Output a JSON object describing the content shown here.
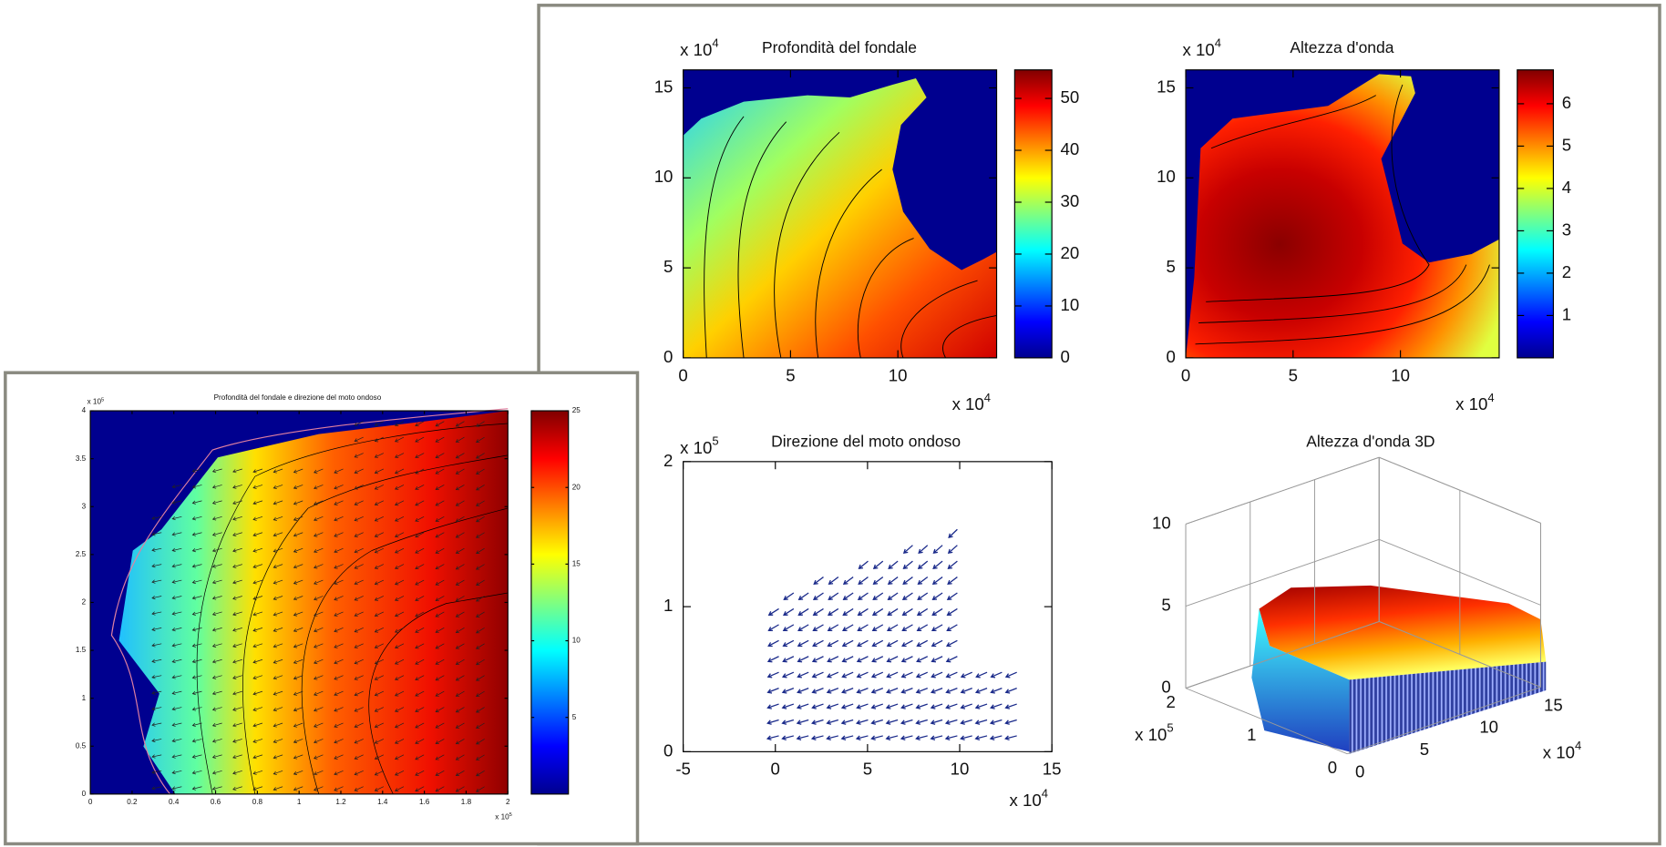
{
  "chart_data": [
    {
      "type": "contour",
      "title": "Profondità del fondale",
      "xlim": [
        0,
        14.6
      ],
      "ylim": [
        0,
        16
      ],
      "xticks": [
        0,
        5,
        10
      ],
      "yticks": [
        0,
        5,
        10,
        15
      ],
      "x_scale": {
        "base": "x 10",
        "exponent": 4
      },
      "y_scale": {
        "base": "x 10",
        "exponent": 4
      },
      "colorbar": {
        "clim": [
          0,
          55.5
        ],
        "ticks": [
          0,
          10,
          20,
          30,
          40,
          50
        ]
      }
    },
    {
      "type": "contour",
      "title": "Altezza d'onda",
      "xlim": [
        0,
        14.6
      ],
      "ylim": [
        0,
        16
      ],
      "xticks": [
        0,
        5,
        10
      ],
      "yticks": [
        0,
        5,
        10,
        15
      ],
      "x_scale": {
        "base": "x 10",
        "exponent": 4
      },
      "y_scale": {
        "base": "x 10",
        "exponent": 4
      },
      "colorbar": {
        "clim": [
          0,
          6.8
        ],
        "ticks": [
          1,
          2,
          3,
          4,
          5,
          6
        ]
      }
    },
    {
      "type": "quiver",
      "title": "Direzione del moto ondoso",
      "xlim": [
        -5,
        15
      ],
      "ylim": [
        0,
        2
      ],
      "xticks": [
        -5,
        0,
        5,
        10,
        15
      ],
      "yticks": [
        0,
        1,
        2
      ],
      "x_scale": {
        "base": "x 10",
        "exponent": 4
      },
      "y_scale": {
        "base": "x 10",
        "exponent": 5
      }
    },
    {
      "type": "surface",
      "title": "Altezza d'onda 3D",
      "xlim": [
        0,
        15
      ],
      "ylim": [
        0,
        2
      ],
      "zlim": [
        0,
        10
      ],
      "xticks": [
        0,
        5,
        10,
        15
      ],
      "yticks": [
        0,
        1,
        2
      ],
      "zticks": [
        0,
        5,
        10
      ],
      "x_scale": {
        "base": "x 10",
        "exponent": 4
      },
      "y_scale": {
        "base": "x 10",
        "exponent": 5
      }
    },
    {
      "type": "contour",
      "title": "Profondità del fondale e direzione del moto ondoso",
      "xlim": [
        0,
        2
      ],
      "ylim": [
        0,
        4
      ],
      "xticks": [
        0,
        0.2,
        0.4,
        0.6,
        0.8,
        1,
        1.2,
        1.4,
        1.6,
        1.8,
        2
      ],
      "yticks": [
        0,
        0.5,
        1,
        1.5,
        2,
        2.5,
        3,
        3.5,
        4
      ],
      "x_scale": {
        "base": "x 10",
        "exponent": 5
      },
      "y_scale": {
        "base": "x 10",
        "exponent": 5
      },
      "colorbar": {
        "clim": [
          0,
          25
        ],
        "ticks": [
          5,
          10,
          15,
          20,
          25
        ]
      }
    }
  ]
}
